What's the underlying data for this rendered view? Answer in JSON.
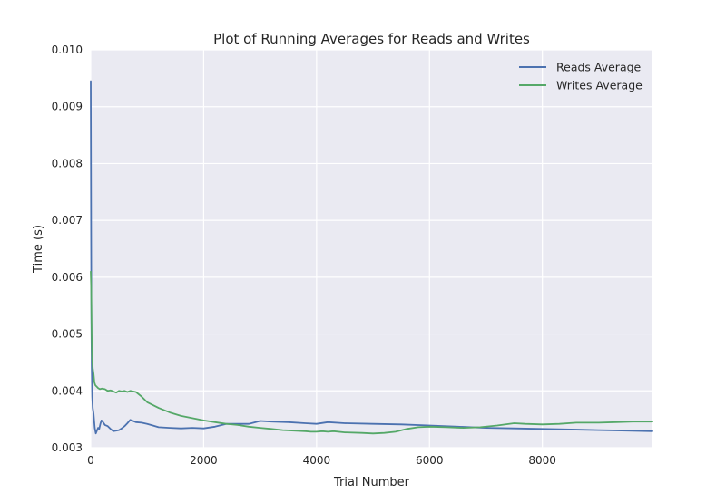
{
  "chart_data": {
    "type": "line",
    "title": "Plot of Running Averages for Reads and Writes",
    "xlabel": "Trial Number",
    "ylabel": "Time (s)",
    "xlim": [
      0,
      9950
    ],
    "ylim": [
      0.003,
      0.01
    ],
    "x_ticks": [
      0,
      2000,
      4000,
      6000,
      8000
    ],
    "x_tick_labels": [
      "0",
      "2000",
      "4000",
      "6000",
      "8000"
    ],
    "y_ticks": [
      0.003,
      0.004,
      0.005,
      0.006,
      0.007,
      0.008,
      0.009,
      0.01
    ],
    "y_tick_labels": [
      "0.003",
      "0.004",
      "0.005",
      "0.006",
      "0.007",
      "0.008",
      "0.009",
      "0.010"
    ],
    "grid": true,
    "legend_position": "top-right",
    "series": [
      {
        "name": "Reads Average",
        "color": "#4C72B0",
        "points": [
          [
            0,
            0.00945
          ],
          [
            6,
            0.0068
          ],
          [
            12,
            0.0052
          ],
          [
            18,
            0.0044
          ],
          [
            25,
            0.0039
          ],
          [
            35,
            0.0037
          ],
          [
            50,
            0.0036
          ],
          [
            70,
            0.00335
          ],
          [
            90,
            0.00325
          ],
          [
            110,
            0.0033
          ],
          [
            130,
            0.00335
          ],
          [
            150,
            0.00333
          ],
          [
            170,
            0.00342
          ],
          [
            190,
            0.00348
          ],
          [
            210,
            0.00346
          ],
          [
            250,
            0.0034
          ],
          [
            300,
            0.00338
          ],
          [
            350,
            0.00333
          ],
          [
            400,
            0.00329
          ],
          [
            450,
            0.0033
          ],
          [
            500,
            0.00331
          ],
          [
            550,
            0.00334
          ],
          [
            600,
            0.00338
          ],
          [
            650,
            0.00343
          ],
          [
            700,
            0.00349
          ],
          [
            750,
            0.00347
          ],
          [
            800,
            0.00345
          ],
          [
            900,
            0.00344
          ],
          [
            1000,
            0.00342
          ],
          [
            1100,
            0.00339
          ],
          [
            1200,
            0.00336
          ],
          [
            1400,
            0.00335
          ],
          [
            1600,
            0.00334
          ],
          [
            1800,
            0.00335
          ],
          [
            2000,
            0.00334
          ],
          [
            2200,
            0.00337
          ],
          [
            2400,
            0.00342
          ],
          [
            2600,
            0.00342
          ],
          [
            2800,
            0.00342
          ],
          [
            3000,
            0.00347
          ],
          [
            3200,
            0.00346
          ],
          [
            3500,
            0.00345
          ],
          [
            3800,
            0.00343
          ],
          [
            4000,
            0.00342
          ],
          [
            4200,
            0.00345
          ],
          [
            4500,
            0.00343
          ],
          [
            5000,
            0.00342
          ],
          [
            5500,
            0.00341
          ],
          [
            6000,
            0.00339
          ],
          [
            6500,
            0.00337
          ],
          [
            7000,
            0.00335
          ],
          [
            7500,
            0.00334
          ],
          [
            8000,
            0.00333
          ],
          [
            8500,
            0.00332
          ],
          [
            9000,
            0.00331
          ],
          [
            9500,
            0.0033
          ],
          [
            9950,
            0.00329
          ]
        ]
      },
      {
        "name": "Writes Average",
        "color": "#55A868",
        "points": [
          [
            0,
            0.0061
          ],
          [
            8,
            0.0058
          ],
          [
            16,
            0.005
          ],
          [
            24,
            0.0046
          ],
          [
            35,
            0.0044
          ],
          [
            50,
            0.0043
          ],
          [
            65,
            0.00415
          ],
          [
            80,
            0.0041
          ],
          [
            100,
            0.00408
          ],
          [
            130,
            0.00405
          ],
          [
            160,
            0.00403
          ],
          [
            200,
            0.00404
          ],
          [
            250,
            0.00403
          ],
          [
            300,
            0.004
          ],
          [
            350,
            0.00401
          ],
          [
            400,
            0.00399
          ],
          [
            450,
            0.00397
          ],
          [
            500,
            0.004
          ],
          [
            550,
            0.00399
          ],
          [
            600,
            0.004
          ],
          [
            650,
            0.00398
          ],
          [
            700,
            0.004
          ],
          [
            750,
            0.00399
          ],
          [
            800,
            0.00398
          ],
          [
            900,
            0.0039
          ],
          [
            1000,
            0.0038
          ],
          [
            1200,
            0.0037
          ],
          [
            1400,
            0.00362
          ],
          [
            1600,
            0.00356
          ],
          [
            1800,
            0.00352
          ],
          [
            2000,
            0.00348
          ],
          [
            2200,
            0.00345
          ],
          [
            2400,
            0.00342
          ],
          [
            2600,
            0.0034
          ],
          [
            2800,
            0.00337
          ],
          [
            3000,
            0.00335
          ],
          [
            3200,
            0.00333
          ],
          [
            3400,
            0.00331
          ],
          [
            3600,
            0.0033
          ],
          [
            3800,
            0.00329
          ],
          [
            3900,
            0.00328
          ],
          [
            4000,
            0.00328
          ],
          [
            4100,
            0.00329
          ],
          [
            4200,
            0.00328
          ],
          [
            4300,
            0.00329
          ],
          [
            4500,
            0.00327
          ],
          [
            4800,
            0.00326
          ],
          [
            5000,
            0.00325
          ],
          [
            5200,
            0.00326
          ],
          [
            5400,
            0.00328
          ],
          [
            5600,
            0.00333
          ],
          [
            5800,
            0.00336
          ],
          [
            6000,
            0.00337
          ],
          [
            6300,
            0.00336
          ],
          [
            6600,
            0.00335
          ],
          [
            6900,
            0.00336
          ],
          [
            7200,
            0.00339
          ],
          [
            7500,
            0.00343
          ],
          [
            7700,
            0.00342
          ],
          [
            8000,
            0.00341
          ],
          [
            8300,
            0.00342
          ],
          [
            8600,
            0.00344
          ],
          [
            9000,
            0.00344
          ],
          [
            9300,
            0.00345
          ],
          [
            9600,
            0.00346
          ],
          [
            9950,
            0.00346
          ]
        ]
      }
    ]
  }
}
